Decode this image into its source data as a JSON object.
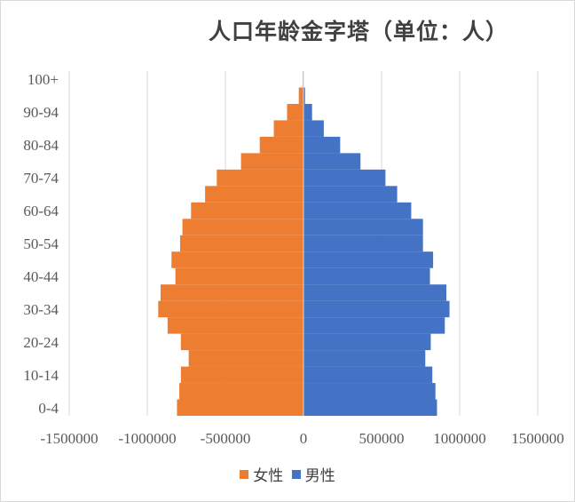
{
  "chart_data": {
    "type": "bar",
    "orientation": "horizontal",
    "title": "人口年龄金字塔（单位：人）",
    "xlabel": "",
    "ylabel": "",
    "xlim": [
      -1500000,
      1500000
    ],
    "x_ticks": [
      -1500000,
      -1000000,
      -500000,
      0,
      500000,
      1000000,
      1500000
    ],
    "x_tick_labels": [
      "-1500000",
      "-1000000",
      "-500000",
      "0",
      "500000",
      "1000000",
      "1500000"
    ],
    "categories": [
      "0-4",
      "5-9",
      "10-14",
      "15-19",
      "20-24",
      "25-29",
      "30-34",
      "35-39",
      "40-44",
      "45-49",
      "50-54",
      "55-59",
      "60-64",
      "65-69",
      "70-74",
      "75-79",
      "80-84",
      "85-89",
      "90-94",
      "95-99",
      "100+"
    ],
    "category_labels_shown": [
      "0-4",
      "10-14",
      "20-24",
      "30-34",
      "40-44",
      "50-54",
      "60-64",
      "70-74",
      "80-84",
      "90-94",
      "100+"
    ],
    "series": [
      {
        "name": "女性",
        "color": "#ED7D31",
        "values": [
          -810000,
          -795000,
          -785000,
          -735000,
          -785000,
          -870000,
          -930000,
          -915000,
          -820000,
          -845000,
          -790000,
          -775000,
          -720000,
          -630000,
          -555000,
          -400000,
          -280000,
          -190000,
          -105000,
          -30000,
          -5000
        ]
      },
      {
        "name": "男性",
        "color": "#4472C4",
        "values": [
          855000,
          845000,
          825000,
          780000,
          815000,
          905000,
          935000,
          915000,
          810000,
          830000,
          765000,
          765000,
          690000,
          600000,
          525000,
          365000,
          235000,
          130000,
          55000,
          10000,
          2000
        ]
      }
    ],
    "grid": true,
    "legend_position": "bottom"
  }
}
